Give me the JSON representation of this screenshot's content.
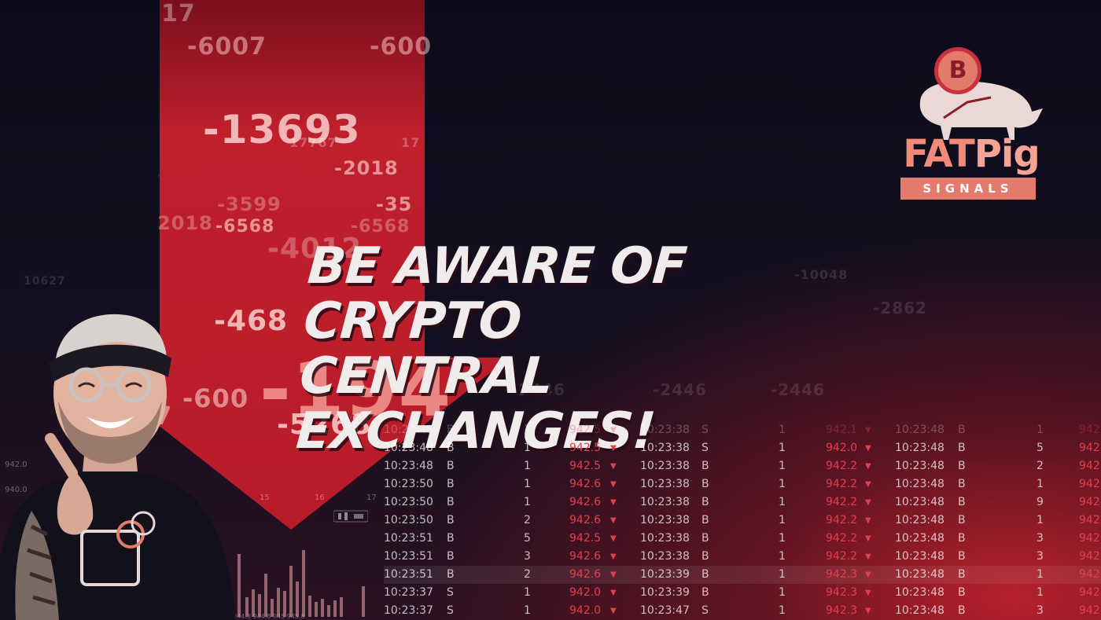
{
  "headline": {
    "line1": "Be aware of crypto",
    "line2": "central exchanges!"
  },
  "logo": {
    "coin_symbol": "B",
    "word_fat": "FAT",
    "word_pig": "Pig",
    "tagline": "SIGNALS"
  },
  "background_numbers": {
    "n1": "17",
    "n2": "-6007",
    "n3": "-600",
    "n4": "-13693",
    "n5": "-2018",
    "n6": "-3599",
    "n7": "-35",
    "n8": "2018",
    "n9": "-6568",
    "n10": "-6568",
    "n11": "-4012",
    "n12": "-468",
    "n13": "-194",
    "n14": "-600",
    "n15": "-5268",
    "n16": "7767",
    "n17": "10627",
    "n18": "17767",
    "n19": "17",
    "n20": "-2446",
    "n21": "-2446",
    "n22": "-2446",
    "n23": "-2862",
    "n24": "-10048",
    "n25": "7"
  },
  "axis_labels": {
    "t15a": "15",
    "t16": "16",
    "t17": "17",
    "p1": "942.0",
    "p2": "940.0",
    "bottom": "944.3  944.8  945  945.8"
  },
  "trades": {
    "rows": [
      {
        "t1": "10:23:48",
        "s1": "B",
        "q1": "1",
        "p1": "942.5",
        "t2": "10:23:38",
        "s2": "S",
        "q2": "1",
        "p2": "942.1",
        "t3": "10:23:48",
        "s3": "B",
        "q3": "1",
        "p3": "942"
      },
      {
        "t1": "10:23:48",
        "s1": "B",
        "q1": "1",
        "p1": "942.5",
        "t2": "10:23:38",
        "s2": "S",
        "q2": "1",
        "p2": "942.0",
        "t3": "10:23:48",
        "s3": "B",
        "q3": "5",
        "p3": "942"
      },
      {
        "t1": "10:23:48",
        "s1": "B",
        "q1": "1",
        "p1": "942.5",
        "t2": "10:23:38",
        "s2": "B",
        "q2": "1",
        "p2": "942.2",
        "t3": "10:23:48",
        "s3": "B",
        "q3": "2",
        "p3": "942"
      },
      {
        "t1": "10:23:50",
        "s1": "B",
        "q1": "1",
        "p1": "942.6",
        "t2": "10:23:38",
        "s2": "B",
        "q2": "1",
        "p2": "942.2",
        "t3": "10:23:48",
        "s3": "B",
        "q3": "1",
        "p3": "942"
      },
      {
        "t1": "10:23:50",
        "s1": "B",
        "q1": "1",
        "p1": "942.6",
        "t2": "10:23:38",
        "s2": "B",
        "q2": "1",
        "p2": "942.2",
        "t3": "10:23:48",
        "s3": "B",
        "q3": "9",
        "p3": "942"
      },
      {
        "t1": "10:23:50",
        "s1": "B",
        "q1": "2",
        "p1": "942.6",
        "t2": "10:23:38",
        "s2": "B",
        "q2": "1",
        "p2": "942.2",
        "t3": "10:23:48",
        "s3": "B",
        "q3": "1",
        "p3": "942"
      },
      {
        "t1": "10:23:51",
        "s1": "B",
        "q1": "5",
        "p1": "942.5",
        "t2": "10:23:38",
        "s2": "B",
        "q2": "1",
        "p2": "942.2",
        "t3": "10:23:48",
        "s3": "B",
        "q3": "3",
        "p3": "942"
      },
      {
        "t1": "10:23:51",
        "s1": "B",
        "q1": "3",
        "p1": "942.6",
        "t2": "10:23:38",
        "s2": "B",
        "q2": "1",
        "p2": "942.2",
        "t3": "10:23:48",
        "s3": "B",
        "q3": "3",
        "p3": "942"
      },
      {
        "t1": "10:23:51",
        "s1": "B",
        "q1": "2",
        "p1": "942.6",
        "t2": "10:23:39",
        "s2": "B",
        "q2": "1",
        "p2": "942.3",
        "t3": "10:23:48",
        "s3": "B",
        "q3": "1",
        "p3": "942"
      },
      {
        "t1": "10:23:37",
        "s1": "S",
        "q1": "1",
        "p1": "942.0",
        "t2": "10:23:39",
        "s2": "B",
        "q2": "1",
        "p2": "942.3",
        "t3": "10:23:48",
        "s3": "B",
        "q3": "1",
        "p3": "942"
      },
      {
        "t1": "10:23:37",
        "s1": "S",
        "q1": "1",
        "p1": "942.0",
        "t2": "10:23:47",
        "s2": "S",
        "q2": "1",
        "p2": "942.3",
        "t3": "10:23:48",
        "s3": "B",
        "q3": "3",
        "p3": "942"
      }
    ]
  },
  "colors": {
    "arrow_red": "#c8202c",
    "headline": "#f1ecec",
    "logo_salmon": "#e47a6c",
    "price_red": "#e04050"
  },
  "icons": [
    "bitcoin-coin-icon",
    "pig-icon",
    "down-arrow-graphic",
    "candlestick-icon"
  ]
}
